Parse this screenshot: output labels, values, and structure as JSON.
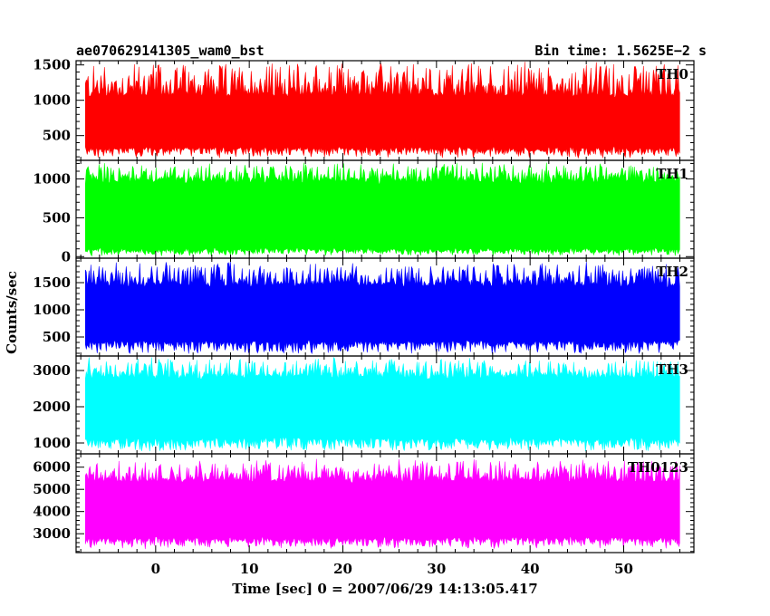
{
  "chart_data": {
    "type": "line",
    "title_left": "ae070629141305_wam0_bst",
    "title_right": "Bin time: 1.5625E−2 s",
    "xlabel": "Time [sec] 0 = 2007/06/29 14:13:05.417",
    "ylabel": "Counts/sec",
    "xlim": [
      -8.5,
      57.5
    ],
    "data_xrange": [
      -7.5,
      56.0
    ],
    "x_ticks": [
      {
        "value": 0,
        "label": "0"
      },
      {
        "value": 10,
        "label": "10"
      },
      {
        "value": 20,
        "label": "20"
      },
      {
        "value": 30,
        "label": "30"
      },
      {
        "value": 40,
        "label": "40"
      },
      {
        "value": 50,
        "label": "50"
      }
    ],
    "panels": [
      {
        "name": "TH0",
        "color": "#ff0000",
        "ylim": [
          150,
          1560
        ],
        "ticks": [
          {
            "value": 500,
            "label": "500"
          },
          {
            "value": 1000,
            "label": "1000"
          },
          {
            "value": 1500,
            "label": "1500"
          }
        ],
        "typical_range": [
          300,
          1100
        ],
        "extreme_range": [
          175,
          1560
        ]
      },
      {
        "name": "TH1",
        "color": "#00ff00",
        "ylim": [
          -20,
          1240
        ],
        "ticks": [
          {
            "value": 0,
            "label": "0"
          },
          {
            "value": 500,
            "label": "500"
          },
          {
            "value": 1000,
            "label": "1000"
          }
        ],
        "typical_range": [
          60,
          1010
        ],
        "extreme_range": [
          0,
          1230
        ]
      },
      {
        "name": "TH2",
        "color": "#0000ff",
        "ylim": [
          150,
          1950
        ],
        "ticks": [
          {
            "value": 500,
            "label": "500"
          },
          {
            "value": 1000,
            "label": "1000"
          },
          {
            "value": 1500,
            "label": "1500"
          }
        ],
        "typical_range": [
          380,
          1500
        ],
        "extreme_range": [
          180,
          1900
        ]
      },
      {
        "name": "TH3",
        "color": "#00ffff",
        "ylim": [
          700,
          3400
        ],
        "ticks": [
          {
            "value": 1000,
            "label": "1000"
          },
          {
            "value": 2000,
            "label": "2000"
          },
          {
            "value": 3000,
            "label": "3000"
          }
        ],
        "typical_range": [
          1050,
          2900
        ],
        "extreme_range": [
          740,
          3380
        ]
      },
      {
        "name": "TH0123",
        "color": "#ff00ff",
        "ylim": [
          2150,
          6600
        ],
        "ticks": [
          {
            "value": 3000,
            "label": "3000"
          },
          {
            "value": 4000,
            "label": "4000"
          },
          {
            "value": 5000,
            "label": "5000"
          },
          {
            "value": 6000,
            "label": "6000"
          }
        ],
        "typical_range": [
          2700,
          5500
        ],
        "extreme_range": [
          2300,
          6400
        ]
      }
    ]
  }
}
